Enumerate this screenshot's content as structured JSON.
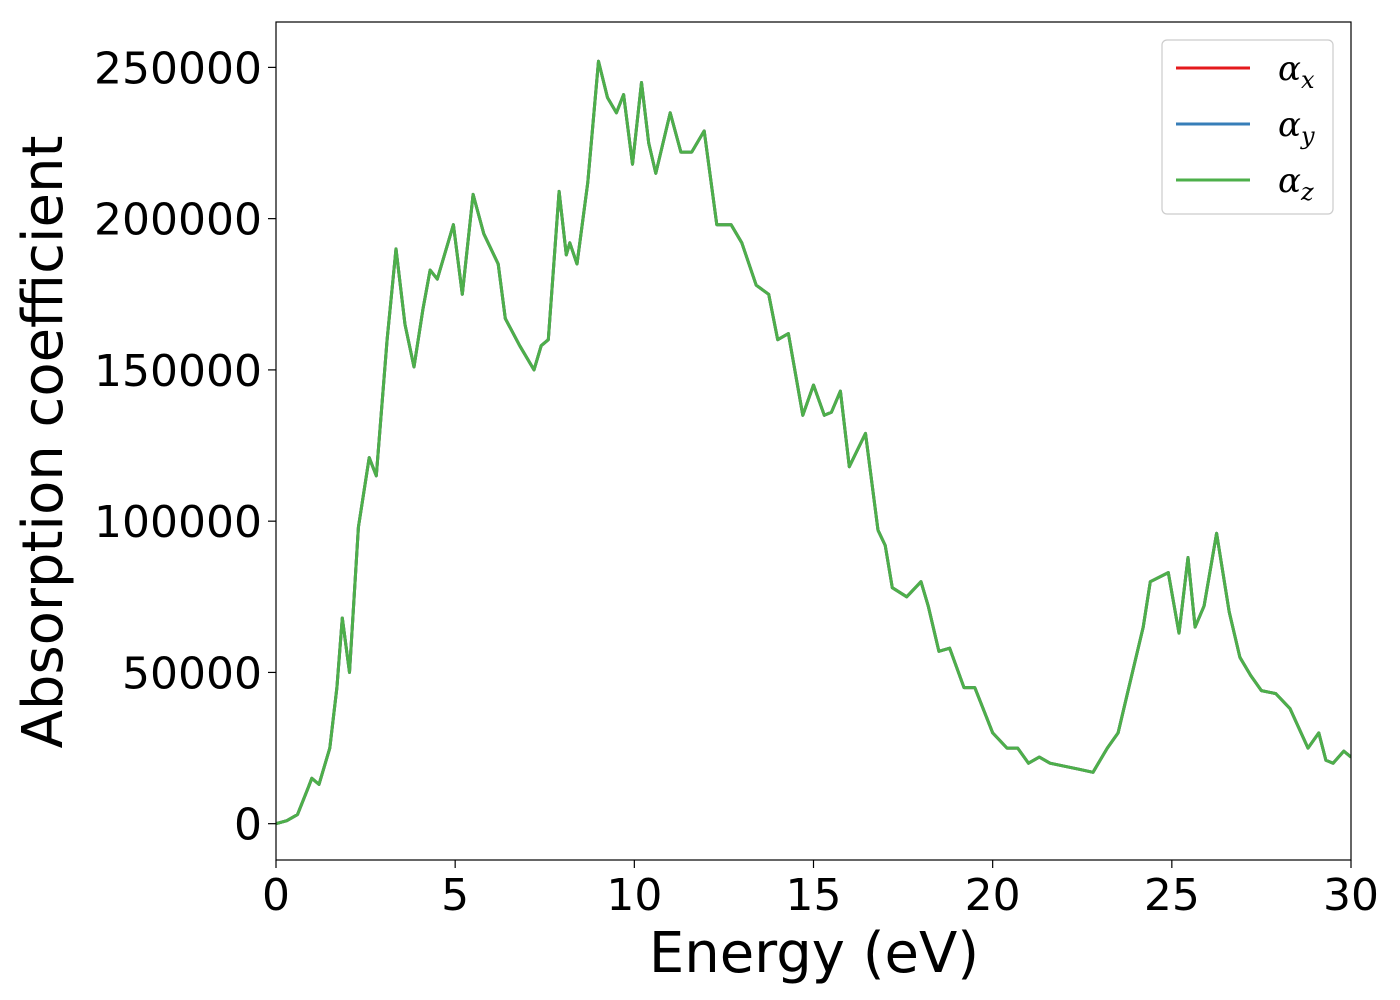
{
  "chart_data": {
    "type": "line",
    "xlabel": "Energy (eV)",
    "ylabel": "Absorption coefficient",
    "xlim": [
      0,
      30
    ],
    "ylim": [
      -12000,
      265000
    ],
    "xticks": [
      0,
      5,
      10,
      15,
      20,
      25,
      30
    ],
    "yticks": [
      0,
      50000,
      100000,
      150000,
      200000,
      250000
    ],
    "grid": false,
    "legend_position": "top-right",
    "series": [
      {
        "name": "α",
        "subscript": "x",
        "color": "#e41a1c",
        "ref": "curve"
      },
      {
        "name": "α",
        "subscript": "y",
        "color": "#377eb8",
        "ref": "curve"
      },
      {
        "name": "α",
        "subscript": "z",
        "color": "#4daf4a",
        "ref": "curve"
      }
    ],
    "curve": {
      "x": [
        0,
        0.3,
        0.6,
        0.9,
        1.0,
        1.2,
        1.5,
        1.7,
        1.85,
        2.05,
        2.3,
        2.6,
        2.8,
        3.1,
        3.35,
        3.6,
        3.85,
        4.1,
        4.3,
        4.5,
        4.95,
        5.2,
        5.5,
        5.8,
        6.2,
        6.4,
        6.8,
        7.2,
        7.4,
        7.6,
        7.9,
        8.1,
        8.2,
        8.4,
        8.7,
        9.0,
        9.25,
        9.5,
        9.7,
        9.95,
        10.2,
        10.4,
        10.6,
        11.0,
        11.3,
        11.6,
        11.95,
        12.3,
        12.7,
        13.0,
        13.4,
        13.75,
        14.0,
        14.3,
        14.7,
        15.0,
        15.3,
        15.5,
        15.75,
        16.0,
        16.45,
        16.8,
        17.0,
        17.2,
        17.6,
        18.0,
        18.2,
        18.5,
        18.8,
        19.2,
        19.5,
        20.0,
        20.4,
        20.7,
        21.0,
        21.3,
        21.6,
        22.0,
        22.4,
        22.8,
        23.2,
        23.5,
        23.8,
        24.2,
        24.4,
        24.9,
        25.2,
        25.45,
        25.65,
        25.9,
        26.25,
        26.6,
        26.9,
        27.2,
        27.5,
        27.9,
        28.3,
        28.8,
        29.1,
        29.3,
        29.5,
        29.8,
        30.0
      ],
      "y": [
        0,
        1000,
        3000,
        12000,
        15000,
        13000,
        25000,
        45000,
        68000,
        50000,
        98000,
        121000,
        115000,
        160000,
        190000,
        165000,
        151000,
        170000,
        183000,
        180000,
        198000,
        175000,
        208000,
        195000,
        185000,
        167000,
        158000,
        150000,
        158000,
        160000,
        209000,
        188000,
        192000,
        185000,
        212000,
        252000,
        240000,
        235000,
        241000,
        218000,
        245000,
        225000,
        215000,
        235000,
        222000,
        222000,
        229000,
        198000,
        198000,
        192000,
        178000,
        175000,
        160000,
        162000,
        135000,
        145000,
        135000,
        136000,
        143000,
        118000,
        129000,
        97000,
        92000,
        78000,
        75000,
        80000,
        72000,
        57000,
        58000,
        45000,
        45000,
        30000,
        25000,
        25000,
        20000,
        22000,
        20000,
        19000,
        18000,
        17000,
        25000,
        30000,
        45000,
        65000,
        80000,
        83000,
        63000,
        88000,
        65000,
        72000,
        96000,
        70000,
        55000,
        49000,
        44000,
        43000,
        38000,
        25000,
        30000,
        21000,
        20000,
        24000,
        22000
      ]
    }
  }
}
